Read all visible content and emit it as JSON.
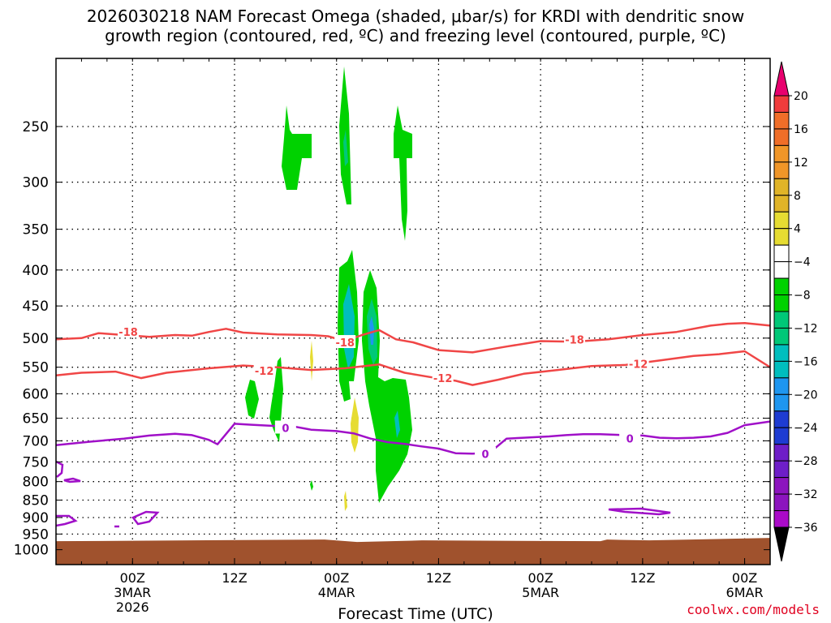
{
  "title_line1": "2026030218 NAM Forecast Omega (shaded, μbar/s) for KRDI with dendritic snow",
  "title_line2": "growth region (contoured, red, ºC) and freezing level (contoured, purple, ºC)",
  "credit": "coolwx.com/models",
  "chart_data": {
    "type": "heatmap",
    "xlabel": "Forecast Time (UTC)",
    "x_range_hours": [
      -9,
      75
    ],
    "x_ticks": [
      {
        "hour": 0,
        "lines": [
          "00Z",
          "3MAR",
          "2026"
        ]
      },
      {
        "hour": 12,
        "lines": [
          "12Z"
        ]
      },
      {
        "hour": 24,
        "lines": [
          "00Z",
          "4MAR"
        ]
      },
      {
        "hour": 36,
        "lines": [
          "12Z"
        ]
      },
      {
        "hour": 48,
        "lines": [
          "00Z",
          "5MAR"
        ]
      },
      {
        "hour": 60,
        "lines": [
          "12Z"
        ]
      },
      {
        "hour": 72,
        "lines": [
          "00Z",
          "6MAR"
        ]
      }
    ],
    "y_scale": "log-pressure",
    "y_range_hpa": [
      1050,
      200
    ],
    "y_ticks": [
      250,
      300,
      350,
      400,
      450,
      500,
      550,
      600,
      650,
      700,
      750,
      800,
      850,
      900,
      950,
      1000
    ],
    "grid": "dotted",
    "terrain_top_hpa": 970,
    "colorbar": {
      "labels": [
        "20",
        "16",
        "12",
        "8",
        "4",
        "−4",
        "−8",
        "−12",
        "−16",
        "−20",
        "−24",
        "−28",
        "−32",
        "−36"
      ],
      "colors": [
        "#e8006e",
        "#f03c3c",
        "#f06e28",
        "#f09628",
        "#e0b428",
        "#e6dc32",
        "#ffffff",
        "#00d200",
        "#00c878",
        "#00bebe",
        "#1e96f0",
        "#1e3cd2",
        "#6e1ec8",
        "#8c14be",
        "#aa0ac8",
        "#b4b4b4",
        "#000000"
      ]
    },
    "contours": [
      {
        "name": "-18",
        "color": "#f04646",
        "points": [
          [
            -9,
            502
          ],
          [
            -6,
            500
          ],
          [
            -4,
            492
          ],
          [
            -1,
            495
          ],
          [
            2,
            498
          ],
          [
            5,
            495
          ],
          [
            7,
            496
          ],
          [
            9,
            490
          ],
          [
            11,
            485
          ],
          [
            13,
            491
          ],
          [
            17,
            494
          ],
          [
            21,
            495
          ],
          [
            23,
            497
          ],
          [
            25,
            505
          ],
          [
            27,
            495
          ],
          [
            29,
            487
          ],
          [
            31,
            502
          ],
          [
            33,
            507
          ],
          [
            36,
            520
          ],
          [
            40,
            524
          ],
          [
            44,
            514
          ],
          [
            48,
            505
          ],
          [
            52,
            506
          ],
          [
            56,
            502
          ],
          [
            60,
            495
          ],
          [
            64,
            490
          ],
          [
            68,
            480
          ],
          [
            70,
            477
          ],
          [
            72,
            476
          ],
          [
            75,
            480
          ]
        ],
        "labels": [
          [
            -0.5,
            490
          ],
          [
            25,
            507
          ],
          [
            52,
            502
          ]
        ]
      },
      {
        "name": "-12",
        "color": "#f04646",
        "points": [
          [
            -9,
            565
          ],
          [
            -6,
            560
          ],
          [
            -2,
            558
          ],
          [
            1,
            570
          ],
          [
            4,
            560
          ],
          [
            9,
            552
          ],
          [
            13,
            547
          ],
          [
            17,
            550
          ],
          [
            21,
            555
          ],
          [
            25,
            552
          ],
          [
            29,
            545
          ],
          [
            32,
            560
          ],
          [
            35,
            568
          ],
          [
            38,
            575
          ],
          [
            40,
            583
          ],
          [
            43,
            573
          ],
          [
            46,
            562
          ],
          [
            50,
            555
          ],
          [
            54,
            548
          ],
          [
            58,
            546
          ],
          [
            62,
            538
          ],
          [
            66,
            530
          ],
          [
            69,
            527
          ],
          [
            72,
            522
          ],
          [
            75,
            550
          ]
        ],
        "labels": [
          [
            15.5,
            556
          ],
          [
            36.5,
            570
          ],
          [
            59.5,
            544
          ]
        ]
      },
      {
        "name": "0",
        "color": "#a010c8",
        "points": [
          [
            -9,
            710
          ],
          [
            -5,
            702
          ],
          [
            -1,
            695
          ],
          [
            2,
            688
          ],
          [
            5,
            684
          ],
          [
            7,
            687
          ],
          [
            9,
            698
          ],
          [
            10,
            708
          ],
          [
            12,
            662
          ],
          [
            14,
            664
          ],
          [
            17,
            667
          ],
          [
            19,
            668
          ],
          [
            21,
            675
          ],
          [
            24,
            678
          ],
          [
            26,
            683
          ],
          [
            28,
            695
          ],
          [
            30,
            703
          ],
          [
            32,
            707
          ],
          [
            34,
            713
          ],
          [
            36,
            718
          ],
          [
            38,
            729
          ],
          [
            40,
            730
          ],
          [
            42,
            728
          ],
          [
            44,
            695
          ],
          [
            46,
            693
          ],
          [
            49,
            690
          ],
          [
            51,
            687
          ],
          [
            53,
            685
          ],
          [
            55,
            685
          ],
          [
            58,
            687
          ],
          [
            60,
            688
          ],
          [
            62,
            693
          ],
          [
            64,
            694
          ],
          [
            66,
            693
          ],
          [
            68,
            690
          ],
          [
            70,
            682
          ],
          [
            72,
            665
          ],
          [
            75,
            657
          ]
        ],
        "labels": [
          [
            18,
            671
          ],
          [
            41.5,
            731
          ],
          [
            58.5,
            695
          ]
        ]
      }
    ]
  }
}
